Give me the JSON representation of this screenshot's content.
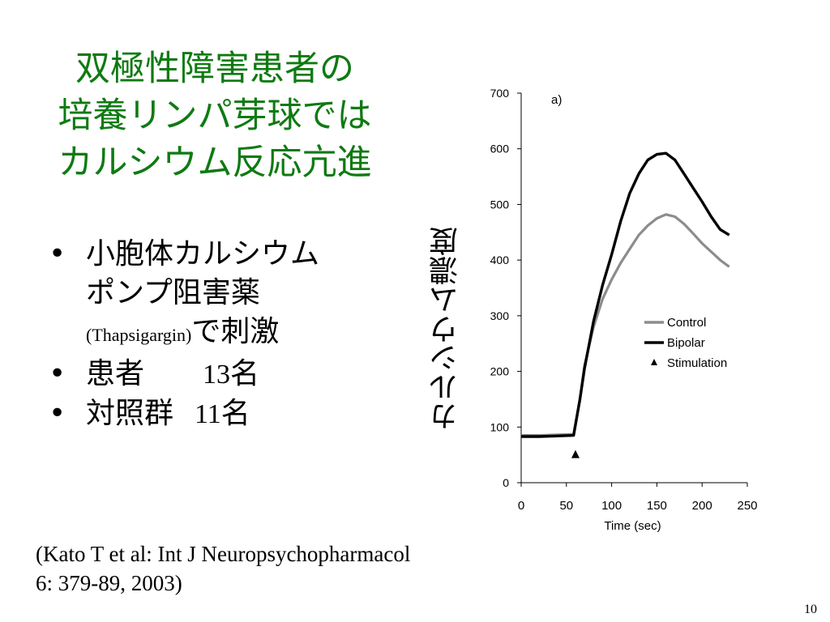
{
  "title": {
    "lines": [
      "双極性障害患者の",
      "培養リンパ芽球では",
      "カルシウム反応亢進"
    ]
  },
  "bullets": [
    {
      "lines": [
        "小胞体カルシウム",
        "ポンプ阻害薬"
      ],
      "tail_serif": "(Thapsigargin)",
      "tail_text": "で刺激"
    },
    {
      "label": "患者",
      "number": "13",
      "unit": "名"
    },
    {
      "label": "対照群",
      "number": "11",
      "unit": "名"
    }
  ],
  "bullet_symbol": "•",
  "chart_ylabel": "カルシウム濃度",
  "citation": {
    "lines": [
      "(Kato T et al: Int J Neuropsychopharmacol",
      "6: 379-89, 2003)"
    ]
  },
  "page_number": "10",
  "chart_data": {
    "type": "line",
    "panel_label": "a)",
    "xlabel": "Time (sec)",
    "ylabel": "",
    "xlim": [
      0,
      250
    ],
    "ylim": [
      0,
      700
    ],
    "xticks": [
      0,
      50,
      100,
      150,
      200,
      250
    ],
    "yticks": [
      0,
      100,
      200,
      300,
      400,
      500,
      600,
      700
    ],
    "grid": false,
    "legend_position": "right",
    "series": [
      {
        "name": "Control",
        "color": "#8c8c8c",
        "x": [
          0,
          20,
          40,
          58,
          65,
          70,
          80,
          90,
          100,
          110,
          120,
          130,
          140,
          150,
          160,
          170,
          180,
          190,
          200,
          210,
          220,
          230
        ],
        "y": [
          85,
          85,
          86,
          87,
          150,
          210,
          280,
          330,
          365,
          395,
          420,
          445,
          462,
          475,
          482,
          478,
          465,
          448,
          430,
          415,
          400,
          388
        ]
      },
      {
        "name": "Bipolar",
        "color": "#000000",
        "x": [
          0,
          20,
          40,
          58,
          65,
          70,
          80,
          90,
          100,
          110,
          120,
          130,
          140,
          150,
          160,
          170,
          180,
          190,
          200,
          210,
          220,
          230
        ],
        "y": [
          83,
          83,
          84,
          85,
          150,
          205,
          290,
          355,
          410,
          470,
          520,
          555,
          580,
          590,
          592,
          580,
          555,
          530,
          505,
          478,
          455,
          445
        ]
      }
    ],
    "markers": [
      {
        "name": "Stimulation",
        "symbol": "triangle",
        "color": "#000000",
        "x": [
          60
        ],
        "y": [
          50
        ]
      }
    ]
  }
}
